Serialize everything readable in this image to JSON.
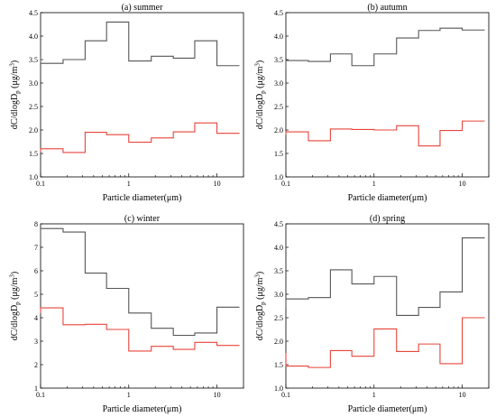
{
  "chart_data": [
    {
      "type": "line",
      "title": "(a) summer",
      "xlabel": "Particle diameter(μm)",
      "ylabel_main": "dC/dlogD",
      "ylabel_sub": "p",
      "ylabel_unit": " (μg/m",
      "ylabel_sup": "3",
      "ylabel_close": ")",
      "xscale": "log",
      "xlim": [
        0.1,
        20
      ],
      "xticks": [
        0.1,
        1,
        10
      ],
      "xticklabels": [
        "0.1",
        "1",
        "10"
      ],
      "ylim": [
        1.0,
        4.5
      ],
      "yticks": [
        1.0,
        1.5,
        2.0,
        2.5,
        3.0,
        3.5,
        4.0,
        4.5
      ],
      "yticklabels": [
        "1.0",
        "1.5",
        "2.0",
        "2.5",
        "3.0",
        "3.5",
        "4.0",
        "4.5"
      ],
      "bin_edges": [
        0.1,
        0.18,
        0.32,
        0.56,
        1.0,
        1.8,
        3.2,
        5.6,
        10,
        18
      ],
      "series": [
        {
          "color": "#555555",
          "values": [
            3.42,
            3.5,
            3.9,
            4.3,
            3.47,
            3.57,
            3.53,
            3.9,
            3.37
          ],
          "start": 3.55
        },
        {
          "color": "#e8443a",
          "values": [
            1.6,
            1.52,
            1.95,
            1.9,
            1.74,
            1.83,
            1.96,
            2.15,
            1.93
          ],
          "start": 1.52
        }
      ]
    },
    {
      "type": "line",
      "title": "(b) autumn",
      "xlabel": "Particle diameter(μm)",
      "ylabel_main": "dC/dlogD",
      "ylabel_sub": "p",
      "ylabel_unit": " (μg/m",
      "ylabel_sup": "3",
      "ylabel_close": ")",
      "xscale": "log",
      "xlim": [
        0.1,
        20
      ],
      "xticks": [
        0.1,
        1,
        10
      ],
      "xticklabels": [
        "0.1",
        "1",
        "10"
      ],
      "ylim": [
        1.0,
        4.5
      ],
      "yticks": [
        1.0,
        1.5,
        2.0,
        2.5,
        3.0,
        3.5,
        4.0,
        4.5
      ],
      "yticklabels": [
        "1.0",
        "1.5",
        "2.0",
        "2.5",
        "3.0",
        "3.5",
        "4.0",
        "4.5"
      ],
      "bin_edges": [
        0.1,
        0.18,
        0.32,
        0.56,
        1.0,
        1.8,
        3.2,
        5.6,
        10,
        18
      ],
      "series": [
        {
          "color": "#555555",
          "values": [
            3.48,
            3.46,
            3.62,
            3.37,
            3.62,
            3.96,
            4.12,
            4.17,
            4.13
          ],
          "start": 3.27
        },
        {
          "color": "#e8443a",
          "values": [
            1.96,
            1.77,
            2.02,
            2.01,
            2.0,
            2.09,
            1.66,
            1.99,
            2.19
          ],
          "start": 1.9
        }
      ]
    },
    {
      "type": "line",
      "title": "(c) winter",
      "xlabel": "Particle diameter(μm)",
      "ylabel_main": "dC/dlogD",
      "ylabel_sub": "p",
      "ylabel_unit": " (μg/m",
      "ylabel_sup": "3",
      "ylabel_close": ")",
      "xscale": "log",
      "xlim": [
        0.1,
        20
      ],
      "xticks": [
        0.1,
        1,
        10
      ],
      "xticklabels": [
        "0.1",
        "1",
        "10"
      ],
      "ylim": [
        1,
        8
      ],
      "yticks": [
        1,
        2,
        3,
        4,
        5,
        6,
        7,
        8
      ],
      "yticklabels": [
        "1",
        "2",
        "3",
        "4",
        "5",
        "6",
        "7",
        "8"
      ],
      "bin_edges": [
        0.1,
        0.18,
        0.32,
        0.56,
        1.0,
        1.8,
        3.2,
        5.6,
        10,
        18
      ],
      "series": [
        {
          "color": "#555555",
          "values": [
            7.8,
            7.65,
            5.9,
            5.25,
            4.2,
            3.55,
            3.25,
            3.35,
            4.45
          ],
          "start": 7.1
        },
        {
          "color": "#e8443a",
          "values": [
            4.42,
            3.7,
            3.72,
            3.5,
            2.58,
            2.78,
            2.65,
            2.95,
            2.82
          ],
          "start": 4.2
        }
      ]
    },
    {
      "type": "line",
      "title": "(d) spring",
      "xlabel": "Particle diameter(μm)",
      "ylabel_main": "dC/dlogD",
      "ylabel_sub": "p",
      "ylabel_unit": " (μg/m",
      "ylabel_sup": "3",
      "ylabel_close": ")",
      "xscale": "log",
      "xlim": [
        0.1,
        20
      ],
      "xticks": [
        0.1,
        1,
        10
      ],
      "xticklabels": [
        "0.1",
        "1",
        "10"
      ],
      "ylim": [
        1.0,
        4.5
      ],
      "yticks": [
        1.0,
        1.5,
        2.0,
        2.5,
        3.0,
        3.5,
        4.0,
        4.5
      ],
      "yticklabels": [
        "1.0",
        "1.5",
        "2.0",
        "2.5",
        "3.0",
        "3.5",
        "4.0",
        "4.5"
      ],
      "bin_edges": [
        0.1,
        0.18,
        0.32,
        0.56,
        1.0,
        1.8,
        3.2,
        5.6,
        10,
        18
      ],
      "series": [
        {
          "color": "#555555",
          "values": [
            2.9,
            2.93,
            3.52,
            3.22,
            3.38,
            2.55,
            2.72,
            3.05,
            4.2
          ],
          "start": 2.7
        },
        {
          "color": "#e8443a",
          "values": [
            1.47,
            1.44,
            1.8,
            1.68,
            2.26,
            1.78,
            1.94,
            1.52,
            2.5
          ],
          "start": 1.75
        }
      ]
    }
  ]
}
